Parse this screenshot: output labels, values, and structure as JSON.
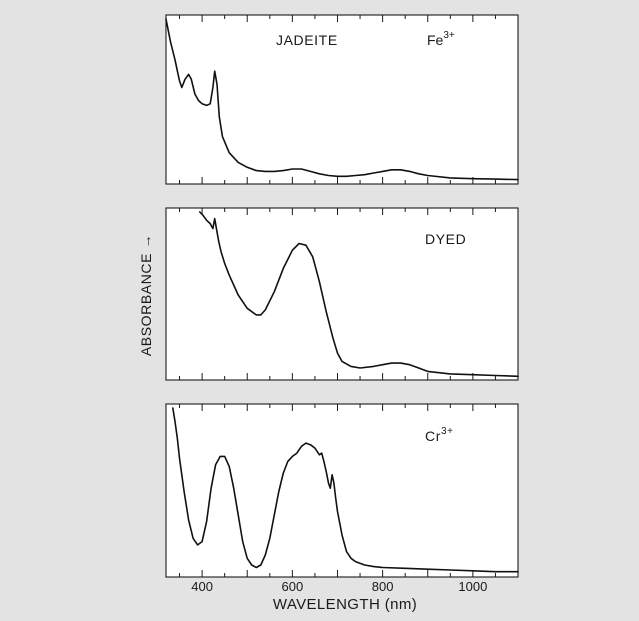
{
  "chart_data": [
    {
      "type": "line",
      "label": "JADEITE",
      "label2": "Fe",
      "label2_sup": "3+",
      "x": [
        320,
        330,
        340,
        350,
        355,
        362,
        370,
        376,
        384,
        392,
        400,
        410,
        418,
        424,
        428,
        433,
        438,
        445,
        460,
        480,
        500,
        520,
        540,
        560,
        580,
        600,
        620,
        640,
        660,
        680,
        700,
        720,
        740,
        760,
        780,
        800,
        820,
        840,
        860,
        880,
        900,
        950,
        1000,
        1050,
        1100
      ],
      "y": [
        1.0,
        0.86,
        0.75,
        0.62,
        0.58,
        0.63,
        0.66,
        0.63,
        0.54,
        0.5,
        0.48,
        0.47,
        0.48,
        0.58,
        0.68,
        0.6,
        0.4,
        0.28,
        0.18,
        0.12,
        0.09,
        0.07,
        0.065,
        0.065,
        0.07,
        0.08,
        0.08,
        0.065,
        0.05,
        0.04,
        0.035,
        0.035,
        0.04,
        0.045,
        0.055,
        0.065,
        0.075,
        0.075,
        0.065,
        0.05,
        0.04,
        0.025,
        0.02,
        0.018,
        0.015
      ],
      "xlim": [
        320,
        1100
      ],
      "ylim": [
        0,
        1
      ]
    },
    {
      "type": "line",
      "label": "DYED",
      "x": [
        395,
        402,
        410,
        418,
        424,
        428,
        433,
        437,
        442,
        450,
        460,
        480,
        500,
        520,
        530,
        540,
        560,
        580,
        600,
        615,
        630,
        645,
        660,
        675,
        690,
        700,
        710,
        730,
        750,
        780,
        800,
        820,
        840,
        860,
        880,
        900,
        950,
        1000,
        1050,
        1100
      ],
      "y": [
        1.0,
        0.98,
        0.95,
        0.93,
        0.9,
        0.96,
        0.88,
        0.82,
        0.76,
        0.69,
        0.62,
        0.5,
        0.42,
        0.38,
        0.38,
        0.41,
        0.52,
        0.66,
        0.77,
        0.81,
        0.8,
        0.73,
        0.58,
        0.4,
        0.24,
        0.15,
        0.1,
        0.07,
        0.06,
        0.07,
        0.08,
        0.09,
        0.09,
        0.08,
        0.06,
        0.04,
        0.025,
        0.02,
        0.015,
        0.01
      ],
      "xlim": [
        320,
        1100
      ],
      "ylim": [
        0,
        1
      ]
    },
    {
      "type": "line",
      "label": "Cr",
      "label_sup": "3+",
      "x": [
        335,
        340,
        345,
        350,
        360,
        370,
        380,
        390,
        400,
        410,
        420,
        430,
        440,
        450,
        460,
        470,
        480,
        490,
        500,
        510,
        520,
        530,
        540,
        550,
        560,
        570,
        580,
        590,
        600,
        610,
        620,
        630,
        640,
        650,
        660,
        665,
        670,
        675,
        680,
        684,
        688,
        692,
        696,
        700,
        710,
        720,
        730,
        740,
        760,
        780,
        800,
        850,
        900,
        950,
        1000,
        1050,
        1100
      ],
      "y": [
        1.0,
        0.92,
        0.82,
        0.7,
        0.5,
        0.33,
        0.22,
        0.18,
        0.2,
        0.32,
        0.52,
        0.66,
        0.71,
        0.71,
        0.65,
        0.52,
        0.36,
        0.2,
        0.1,
        0.06,
        0.045,
        0.06,
        0.12,
        0.22,
        0.36,
        0.5,
        0.61,
        0.68,
        0.71,
        0.73,
        0.77,
        0.79,
        0.78,
        0.76,
        0.72,
        0.73,
        0.68,
        0.62,
        0.55,
        0.52,
        0.6,
        0.55,
        0.46,
        0.38,
        0.24,
        0.14,
        0.1,
        0.08,
        0.06,
        0.05,
        0.045,
        0.04,
        0.035,
        0.03,
        0.025,
        0.02,
        0.02
      ],
      "xlim": [
        320,
        1100
      ],
      "ylim": [
        0,
        1
      ]
    }
  ],
  "x_axis": {
    "ticks": [
      400,
      600,
      800,
      1000
    ],
    "label": "WAVELENGTH (nm)"
  },
  "y_axis": {
    "label": "ABSORBANCE",
    "arrow": "→"
  }
}
